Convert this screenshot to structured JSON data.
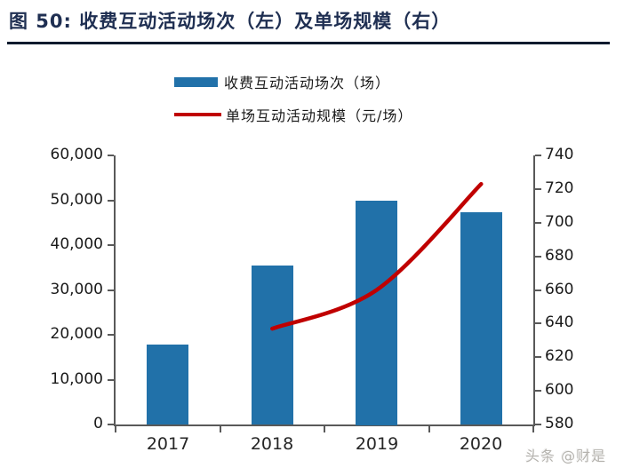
{
  "header": {
    "title": "图 50:  收费互动活动场次（左）及单场规模（右）"
  },
  "legend": {
    "bar_label": "收费互动活动场次（场）",
    "line_label": "单场互动活动规模（元/场）"
  },
  "watermark": "头条 @财是",
  "colors": {
    "bar": "#2171A9",
    "line": "#C00000",
    "title": "#1F2F52",
    "title_rule": "#0D1B2E",
    "axis": "#595959"
  },
  "chart_data": {
    "type": "bar",
    "categories": [
      "2017",
      "2018",
      "2019",
      "2020"
    ],
    "series": [
      {
        "name": "收费互动活动场次（场）",
        "kind": "bar",
        "axis": "left",
        "color": "#2171A9",
        "values": [
          17800,
          35500,
          50000,
          47300
        ]
      },
      {
        "name": "单场互动活动规模（元/场）",
        "kind": "line",
        "axis": "right",
        "color": "#C00000",
        "values": [
          null,
          637,
          660,
          723
        ]
      }
    ],
    "left_axis": {
      "min": 0,
      "max": 60000,
      "step": 10000,
      "tick_labels": [
        "0",
        "10,000",
        "20,000",
        "30,000",
        "40,000",
        "50,000",
        "60,000"
      ]
    },
    "right_axis": {
      "min": 580,
      "max": 740,
      "step": 20,
      "tick_labels": [
        "580",
        "600",
        "620",
        "640",
        "660",
        "680",
        "700",
        "720",
        "740"
      ]
    },
    "grid": false,
    "legend_position": "top-center"
  }
}
